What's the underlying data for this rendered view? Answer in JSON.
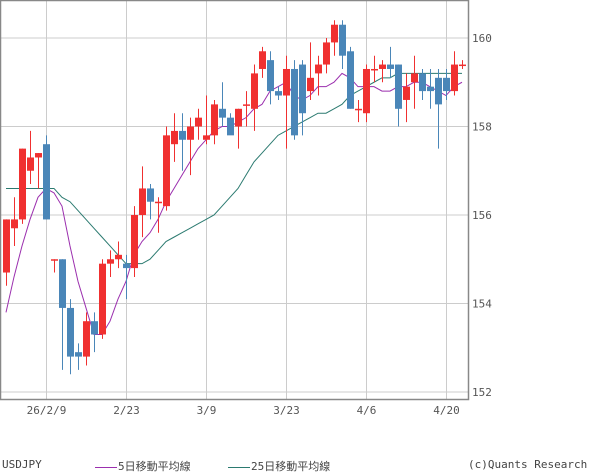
{
  "header": {
    "symbol": "USDJPY"
  },
  "legend": {
    "ma5_label": "5日移動平均線",
    "ma25_label": "25日移動平均線",
    "credit": "(c)Quants Research"
  },
  "colors": {
    "up": "#f03030",
    "down": "#4a86b8",
    "ma5": "#9b2fae",
    "ma25": "#2b7a70",
    "grid": "#cccccc",
    "frame": "#888888"
  },
  "chart_data": {
    "type": "candlestick",
    "title": "USDJPY",
    "xlabel": "",
    "ylabel": "",
    "ylim": [
      151.8,
      161
    ],
    "y_ticks": [
      152,
      154,
      156,
      158,
      160
    ],
    "x_ticks": [
      {
        "label": "26/2/9",
        "index": 5
      },
      {
        "label": "2/23",
        "index": 15
      },
      {
        "label": "3/9",
        "index": 25
      },
      {
        "label": "3/23",
        "index": 35
      },
      {
        "label": "4/6",
        "index": 45
      },
      {
        "label": "4/20",
        "index": 55
      }
    ],
    "grid": true,
    "legend_position": "bottom",
    "series": [
      {
        "name": "USDJPY",
        "type": "candlestick"
      },
      {
        "name": "5日移動平均線",
        "type": "line"
      },
      {
        "name": "25日移動平均線",
        "type": "line"
      }
    ],
    "candles": [
      {
        "o": 154.7,
        "h": 155.9,
        "l": 154.4,
        "c": 155.9
      },
      {
        "o": 155.7,
        "h": 156.4,
        "l": 155.3,
        "c": 155.9
      },
      {
        "o": 155.9,
        "h": 157.5,
        "l": 155.8,
        "c": 157.5
      },
      {
        "o": 157.0,
        "h": 157.9,
        "l": 156.7,
        "c": 157.3
      },
      {
        "o": 157.3,
        "h": 157.4,
        "l": 156.6,
        "c": 157.4
      },
      {
        "o": 157.6,
        "h": 157.8,
        "l": 155.9,
        "c": 155.9
      },
      {
        "o": 155.0,
        "h": 155.0,
        "l": 154.7,
        "c": 155.0
      },
      {
        "o": 155.0,
        "h": 155.0,
        "l": 152.5,
        "c": 153.9
      },
      {
        "o": 153.9,
        "h": 154.1,
        "l": 152.4,
        "c": 152.8
      },
      {
        "o": 152.9,
        "h": 153.1,
        "l": 152.5,
        "c": 152.8
      },
      {
        "o": 152.8,
        "h": 153.8,
        "l": 152.6,
        "c": 153.6
      },
      {
        "o": 153.6,
        "h": 153.8,
        "l": 152.9,
        "c": 153.3
      },
      {
        "o": 153.3,
        "h": 155.0,
        "l": 153.2,
        "c": 154.9
      },
      {
        "o": 154.9,
        "h": 155.2,
        "l": 154.6,
        "c": 155.0
      },
      {
        "o": 155.0,
        "h": 155.4,
        "l": 154.8,
        "c": 155.1
      },
      {
        "o": 154.9,
        "h": 155.1,
        "l": 154.1,
        "c": 154.8
      },
      {
        "o": 154.8,
        "h": 156.2,
        "l": 154.6,
        "c": 156.0
      },
      {
        "o": 156.0,
        "h": 157.1,
        "l": 155.5,
        "c": 156.6
      },
      {
        "o": 156.6,
        "h": 156.7,
        "l": 155.9,
        "c": 156.3
      },
      {
        "o": 156.3,
        "h": 156.4,
        "l": 155.6,
        "c": 156.3
      },
      {
        "o": 156.2,
        "h": 158.0,
        "l": 156.1,
        "c": 157.8
      },
      {
        "o": 157.6,
        "h": 158.3,
        "l": 157.2,
        "c": 157.9
      },
      {
        "o": 157.9,
        "h": 158.3,
        "l": 157.0,
        "c": 157.7
      },
      {
        "o": 157.7,
        "h": 158.2,
        "l": 156.9,
        "c": 158.0
      },
      {
        "o": 158.0,
        "h": 158.4,
        "l": 157.7,
        "c": 158.2
      },
      {
        "o": 157.7,
        "h": 158.7,
        "l": 157.6,
        "c": 157.8
      },
      {
        "o": 157.8,
        "h": 158.6,
        "l": 157.6,
        "c": 158.5
      },
      {
        "o": 158.4,
        "h": 159.0,
        "l": 158.0,
        "c": 158.2
      },
      {
        "o": 158.2,
        "h": 158.3,
        "l": 157.9,
        "c": 157.8
      },
      {
        "o": 158.0,
        "h": 158.4,
        "l": 157.5,
        "c": 158.4
      },
      {
        "o": 158.5,
        "h": 158.8,
        "l": 158.0,
        "c": 158.5
      },
      {
        "o": 158.4,
        "h": 159.4,
        "l": 157.9,
        "c": 159.2
      },
      {
        "o": 159.3,
        "h": 159.8,
        "l": 159.1,
        "c": 159.7
      },
      {
        "o": 159.5,
        "h": 159.7,
        "l": 158.5,
        "c": 158.8
      },
      {
        "o": 158.8,
        "h": 158.9,
        "l": 158.6,
        "c": 158.7
      },
      {
        "o": 158.7,
        "h": 159.6,
        "l": 157.5,
        "c": 159.3
      },
      {
        "o": 159.3,
        "h": 159.5,
        "l": 157.7,
        "c": 157.8
      },
      {
        "o": 159.4,
        "h": 159.5,
        "l": 157.8,
        "c": 158.3
      },
      {
        "o": 158.8,
        "h": 159.9,
        "l": 158.6,
        "c": 159.1
      },
      {
        "o": 159.2,
        "h": 159.6,
        "l": 158.7,
        "c": 159.4
      },
      {
        "o": 159.4,
        "h": 160.0,
        "l": 159.2,
        "c": 159.9
      },
      {
        "o": 159.9,
        "h": 160.4,
        "l": 159.6,
        "c": 160.3
      },
      {
        "o": 160.3,
        "h": 160.4,
        "l": 159.3,
        "c": 159.6
      },
      {
        "o": 159.7,
        "h": 159.8,
        "l": 158.4,
        "c": 158.4
      },
      {
        "o": 158.4,
        "h": 158.6,
        "l": 158.1,
        "c": 158.4
      },
      {
        "o": 158.3,
        "h": 159.4,
        "l": 158.1,
        "c": 159.3
      },
      {
        "o": 159.3,
        "h": 159.6,
        "l": 159.0,
        "c": 159.3
      },
      {
        "o": 159.3,
        "h": 159.5,
        "l": 159.0,
        "c": 159.4
      },
      {
        "o": 159.4,
        "h": 159.8,
        "l": 159.1,
        "c": 159.3
      },
      {
        "o": 159.4,
        "h": 159.4,
        "l": 158.0,
        "c": 158.4
      },
      {
        "o": 158.6,
        "h": 159.2,
        "l": 158.1,
        "c": 158.9
      },
      {
        "o": 159.0,
        "h": 159.6,
        "l": 158.4,
        "c": 159.2
      },
      {
        "o": 159.2,
        "h": 159.3,
        "l": 158.6,
        "c": 158.8
      },
      {
        "o": 158.9,
        "h": 159.3,
        "l": 158.4,
        "c": 158.8
      },
      {
        "o": 159.1,
        "h": 159.3,
        "l": 157.5,
        "c": 158.5
      },
      {
        "o": 159.1,
        "h": 159.3,
        "l": 158.6,
        "c": 158.8
      },
      {
        "o": 158.8,
        "h": 159.7,
        "l": 158.7,
        "c": 159.4
      },
      {
        "o": 159.4,
        "h": 159.5,
        "l": 159.3,
        "c": 159.4
      }
    ],
    "ma5": [
      153.8,
      154.6,
      155.3,
      155.9,
      156.4,
      156.6,
      156.5,
      156.2,
      155.3,
      154.5,
      153.9,
      153.3,
      153.3,
      153.6,
      154.1,
      154.5,
      155.1,
      155.4,
      155.6,
      155.9,
      156.3,
      156.6,
      156.9,
      157.2,
      157.5,
      157.7,
      157.9,
      158.0,
      158.0,
      158.1,
      158.2,
      158.4,
      158.5,
      158.8,
      158.9,
      159.0,
      158.7,
      158.6,
      158.7,
      158.9,
      158.9,
      159.0,
      159.2,
      159.1,
      158.9,
      158.9,
      158.9,
      158.8,
      158.8,
      158.9,
      158.9,
      159.0,
      159.0,
      158.9,
      158.8,
      158.7,
      158.9,
      159.0
    ],
    "ma25": [
      156.6,
      156.6,
      156.6,
      156.6,
      156.6,
      156.6,
      156.6,
      156.4,
      156.3,
      156.1,
      155.9,
      155.7,
      155.5,
      155.3,
      155.1,
      154.9,
      154.9,
      154.9,
      155.0,
      155.2,
      155.4,
      155.5,
      155.6,
      155.7,
      155.8,
      155.9,
      156.0,
      156.2,
      156.4,
      156.6,
      156.9,
      157.2,
      157.4,
      157.6,
      157.8,
      157.9,
      158.0,
      158.1,
      158.2,
      158.3,
      158.3,
      158.4,
      158.5,
      158.7,
      158.8,
      158.9,
      159.0,
      159.1,
      159.1,
      159.2,
      159.2,
      159.2,
      159.2,
      159.2,
      159.2,
      159.2,
      159.2,
      159.2
    ]
  }
}
